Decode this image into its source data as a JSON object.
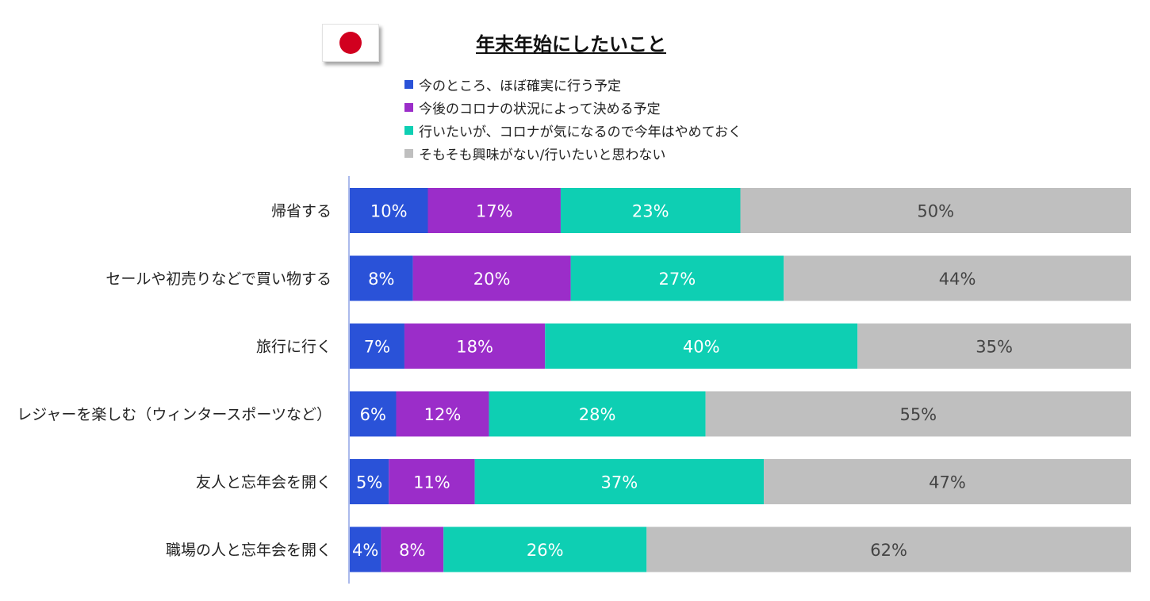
{
  "chart_data": {
    "type": "bar",
    "orientation": "horizontal",
    "stacked": true,
    "title": "年末年始にしたいこと",
    "categories": [
      "帰省する",
      "セールや初売りなどで買い物する",
      "旅行に行く",
      "レジャーを楽しむ（ウィンタースポーツなど）",
      "友人と忘年会を開く",
      "職場の人と忘年会を開く"
    ],
    "series": [
      {
        "name": "今のところ、ほぼ確実に行う予定",
        "color": "#2a52d8",
        "values": [
          10,
          8,
          7,
          6,
          5,
          4
        ],
        "labels": [
          "10%",
          "8%",
          "7%",
          "6%",
          "5%",
          "4%"
        ],
        "label_color": "#ffffff"
      },
      {
        "name": "今後のコロナの状況によって決める予定",
        "color": "#9b2dc9",
        "values": [
          17,
          20,
          18,
          12,
          11,
          8
        ],
        "labels": [
          "17%",
          "20%",
          "18%",
          "12%",
          "11%",
          "8%"
        ],
        "label_color": "#ffffff"
      },
      {
        "name": "行いたいが、コロナが気になるので今年はやめておく",
        "color": "#0ecfb3",
        "values": [
          23,
          27,
          40,
          28,
          37,
          26
        ],
        "labels": [
          "23%",
          "27%",
          "40%",
          "28%",
          "37%",
          "26%"
        ],
        "label_color": "#ffffff"
      },
      {
        "name": "そもそも興味がない/行いたいと思わない",
        "color": "#bfbfbf",
        "values": [
          50,
          44,
          35,
          55,
          47,
          62
        ],
        "labels": [
          "50%",
          "44%",
          "35%",
          "55%",
          "47%",
          "62%"
        ],
        "label_color": "#444444"
      }
    ],
    "legend_position": "top",
    "grid": false,
    "axis_color": "#8fa3e6"
  },
  "flag": {
    "icon": "japan-flag-icon"
  }
}
